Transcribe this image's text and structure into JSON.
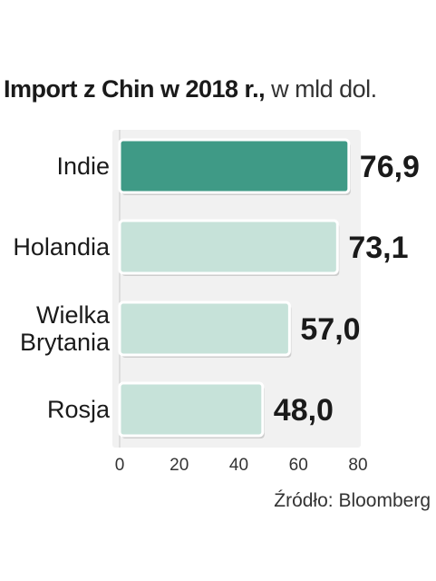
{
  "chart_data": {
    "type": "bar",
    "orientation": "horizontal",
    "title": "Import z Chin w 2018 r.,",
    "unit": "w mld dol.",
    "categories": [
      "Indie",
      "Holandia",
      "Wielka Brytania",
      "Rosja"
    ],
    "values": [
      76.9,
      73.1,
      57.0,
      48.0
    ],
    "value_labels": [
      "76,9",
      "73,1",
      "57,0",
      "48,0"
    ],
    "xlim": [
      0,
      80
    ],
    "xticks": [
      "0",
      "20",
      "40",
      "60",
      "80"
    ],
    "xtick_values": [
      0,
      20,
      40,
      60,
      80
    ],
    "colors": [
      "#3f9a86",
      "#c6e2d9",
      "#c6e2d9",
      "#c6e2d9"
    ],
    "background": "#f1f1f1",
    "source": "Źródło: Bloomberg"
  }
}
